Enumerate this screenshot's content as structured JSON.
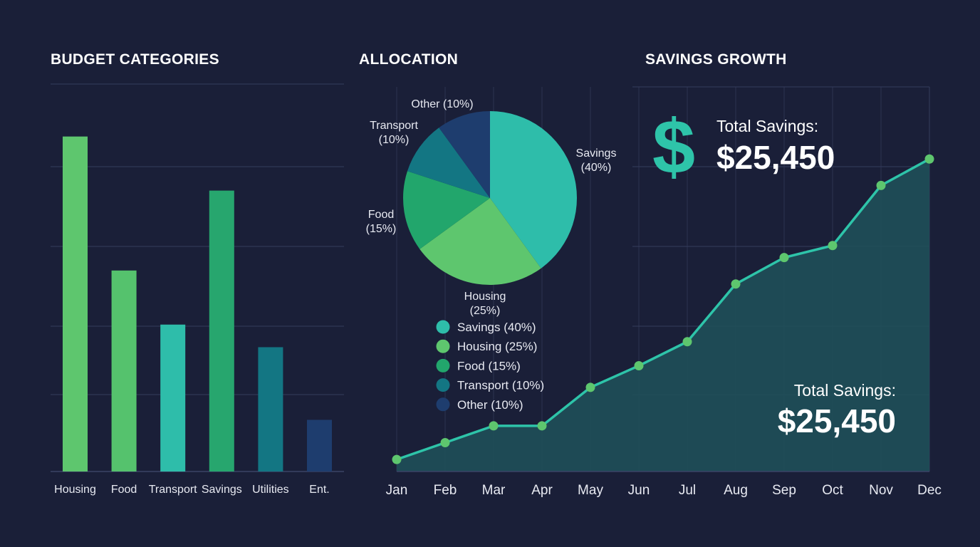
{
  "chart_data": [
    {
      "type": "bar",
      "title": "BUDGET CATEGORIES",
      "categories": [
        "Housing",
        "Food",
        "Transport",
        "Savings",
        "Utilities",
        "Ent."
      ],
      "values": [
        41.5,
        24.9,
        18.2,
        34.8,
        15.4,
        6.4
      ],
      "colors": [
        "#5ec66e",
        "#55c26d",
        "#2ebdaa",
        "#27a66e",
        "#137683",
        "#1e3d6e"
      ],
      "ylim": [
        0,
        48
      ],
      "grid": true
    },
    {
      "type": "pie",
      "title": "ALLOCATION",
      "slices": [
        {
          "label": "Savings",
          "pct": "(40%)",
          "value": 40,
          "color": "#2ebdaa",
          "legend": "Savings (40%)"
        },
        {
          "label": "Housing",
          "pct": "(25%)",
          "value": 25,
          "color": "#5ec66e",
          "legend": "Housing (25%)"
        },
        {
          "label": "Food",
          "pct": "(15%)",
          "value": 15,
          "color": "#22a66c",
          "legend": "Food (15%)"
        },
        {
          "label": "Transport",
          "pct": "(10%)",
          "value": 10,
          "color": "#137683",
          "legend": "Transport (10%)"
        },
        {
          "label": "Other",
          "pct": "(10%)",
          "value": 10,
          "color": "#1e3d6e",
          "legend": "Other (10%)"
        }
      ],
      "legend_position": "bottom"
    },
    {
      "type": "area",
      "title": "SAVINGS GROWTH",
      "x": [
        "Jan",
        "Feb",
        "Mar",
        "Apr",
        "May",
        "Jun",
        "Jul",
        "Aug",
        "Sep",
        "Oct",
        "Nov",
        "Dec"
      ],
      "values": [
        500,
        1200,
        1900,
        1900,
        3500,
        4400,
        5400,
        7800,
        8900,
        9400,
        11900,
        13000
      ],
      "ylim": [
        0,
        16000
      ],
      "line_color": "#2ec4a9",
      "marker_color": "#5ec66e",
      "fill_color": "#1f4f59",
      "grid": true
    }
  ],
  "summary": {
    "dollar_icon": "dollar-icon",
    "total_label": "Total Savings:",
    "total_value": "$25,450"
  }
}
